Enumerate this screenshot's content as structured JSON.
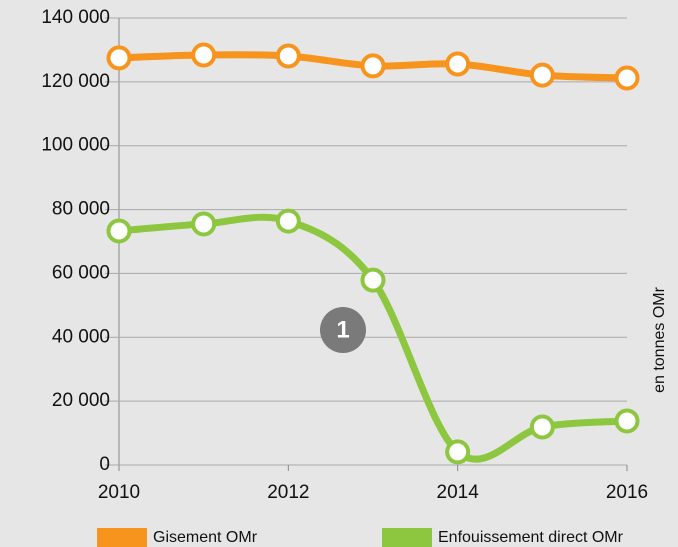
{
  "chart_data": {
    "type": "line",
    "x": [
      2010,
      2011,
      2012,
      2013,
      2014,
      2015,
      2016
    ],
    "xlim": [
      2010,
      2016
    ],
    "xticks": [
      2010,
      2012,
      2014,
      2016
    ],
    "ylim": [
      0,
      140000
    ],
    "yticks": [
      {
        "value": 0,
        "label": "0"
      },
      {
        "value": 20000,
        "label": "20 000"
      },
      {
        "value": 40000,
        "label": "40 000"
      },
      {
        "value": 60000,
        "label": "60 000"
      },
      {
        "value": 80000,
        "label": "80 000"
      },
      {
        "value": 100000,
        "label": "100 000"
      },
      {
        "value": 120000,
        "label": "120 000"
      },
      {
        "value": 140000,
        "label": "140 000"
      }
    ],
    "grid": true,
    "y_label": "en tonnes OMr",
    "annotation": "1",
    "legend": "bottom",
    "series": [
      {
        "name": "Gisement OMr",
        "color": "#f7941d",
        "values": [
          127500,
          128400,
          128100,
          125000,
          125600,
          122100,
          121200
        ]
      },
      {
        "name": "Enfouissement direct OMr",
        "color": "#8dc63f",
        "values": [
          73300,
          75500,
          76400,
          57900,
          4100,
          11900,
          13800
        ]
      }
    ]
  }
}
